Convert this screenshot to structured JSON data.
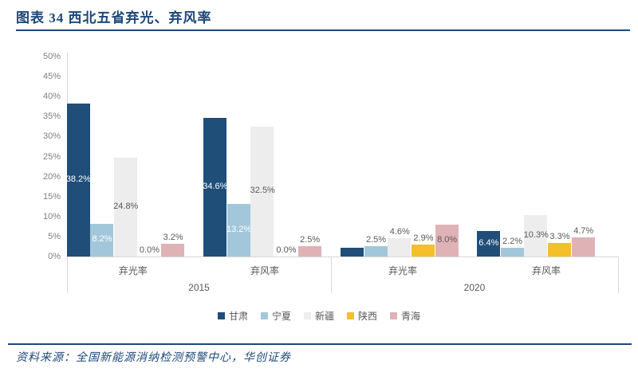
{
  "header": {
    "title": "图表 34  西北五省弃光、弃风率"
  },
  "footer": {
    "source": "资料来源：全国新能源消纳检测预警中心，华创证券"
  },
  "colors": {
    "accent_navy": "#1d4879",
    "axis_line": "#d9d9d9",
    "tick_text": "#7f7f7f",
    "label_text": "#595959"
  },
  "chart_data": {
    "type": "bar",
    "title": "西北五省弃光、弃风率",
    "grid": false,
    "legend_position": "bottom",
    "y_axis": {
      "min": 0,
      "max": 50,
      "step": 5,
      "unit": "%",
      "ticks": [
        "0%",
        "5%",
        "10%",
        "15%",
        "20%",
        "25%",
        "30%",
        "35%",
        "40%",
        "45%",
        "50%"
      ]
    },
    "categories": [
      {
        "label": "弃光率",
        "year": "2015"
      },
      {
        "label": "弃风率",
        "year": "2015"
      },
      {
        "label": "弃光率",
        "year": "2020"
      },
      {
        "label": "弃风率",
        "year": "2020"
      }
    ],
    "year_groups": [
      "2015",
      "2020"
    ],
    "series": [
      {
        "name": "甘肃",
        "color": "#1f4e79",
        "in_bar_label_color": "#ffffff",
        "values": [
          38.2,
          34.6,
          2.1,
          6.4
        ],
        "labels": [
          "38.2%",
          "34.6%",
          "",
          "6.4%"
        ]
      },
      {
        "name": "宁夏",
        "color": "#a3c7da",
        "in_bar_label_color": "#ffffff",
        "values": [
          8.2,
          13.2,
          2.5,
          2.2
        ],
        "labels": [
          "8.2%",
          "13.2%",
          "2.5%",
          "2.2%"
        ]
      },
      {
        "name": "新疆",
        "color": "#ededed",
        "in_bar_label_color": "#595959",
        "values": [
          24.8,
          32.5,
          4.6,
          10.3
        ],
        "labels": [
          "24.8%",
          "32.5%",
          "4.6%",
          "10.3%"
        ]
      },
      {
        "name": "陕西",
        "color": "#f3bf2b",
        "in_bar_label_color": "#595959",
        "values": [
          0.0,
          0.0,
          2.9,
          3.3
        ],
        "labels": [
          "0.0%",
          "0.0%",
          "2.9%",
          "3.3%"
        ]
      },
      {
        "name": "青海",
        "color": "#dfb2b6",
        "in_bar_label_color": "#595959",
        "values": [
          3.2,
          2.5,
          8.0,
          4.7
        ],
        "labels": [
          "3.2%",
          "2.5%",
          "8.0%",
          "4.7%"
        ]
      }
    ]
  }
}
